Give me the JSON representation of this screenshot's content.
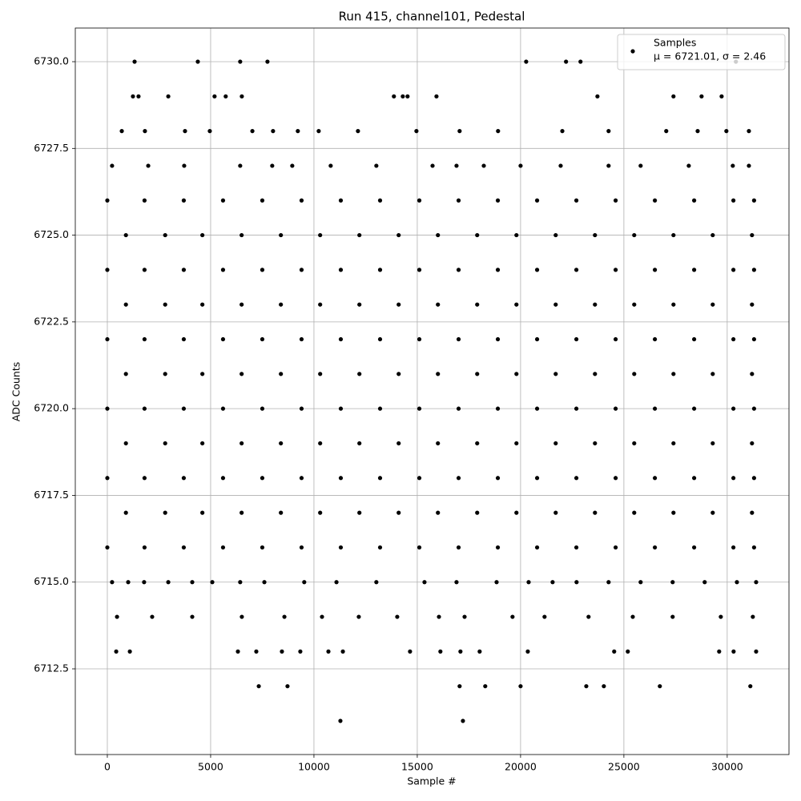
{
  "chart_data": {
    "type": "scatter",
    "title": "Run 415, channel101, Pedestal",
    "x_label": "Sample #",
    "y_label": "ADC Counts",
    "xlim": [
      -1550,
      32990
    ],
    "ylim": [
      6710.03,
      6730.97
    ],
    "xticks": [
      0,
      5000,
      10000,
      15000,
      20000,
      25000,
      30000
    ],
    "yticks": [
      {
        "value": 6712.5,
        "label": "6712.5"
      },
      {
        "value": 6715,
        "label": "6715.0"
      },
      {
        "value": 6717.5,
        "label": "6717.5"
      },
      {
        "value": 6720,
        "label": "6720.0"
      },
      {
        "value": 6722.5,
        "label": "6722.5"
      },
      {
        "value": 6725,
        "label": "6725.0"
      },
      {
        "value": 6727.5,
        "label": "6727.5"
      },
      {
        "value": 6730,
        "label": "6730.0"
      }
    ],
    "grid": true,
    "legend": "upper right",
    "legend_note": "μ = 6721.01, σ = 2.46",
    "series": [
      {
        "name": "Samples",
        "color": "#000000",
        "x": [
          0,
          1800,
          3700,
          5600,
          7500,
          9400,
          11300,
          13200,
          15100,
          17000,
          18900,
          20800,
          22700,
          24600,
          26500,
          28400,
          30300,
          31300,
          900,
          2800,
          4600,
          6500,
          8400,
          10300,
          12200,
          14100,
          16000,
          17900,
          19800,
          21700,
          23600,
          25500,
          27400,
          29300,
          31200,
          0,
          1800,
          3700,
          5600,
          7500,
          9400,
          11300,
          13200,
          15100,
          17000,
          18900,
          20800,
          22700,
          24600,
          26500,
          28400,
          30300,
          31300,
          900,
          2800,
          4600,
          6500,
          8400,
          10300,
          12200,
          14100,
          16000,
          17900,
          19800,
          21700,
          23600,
          25500,
          27400,
          29300,
          31200,
          0,
          1800,
          3700,
          5600,
          7500,
          9400,
          11300,
          13200,
          15100,
          17000,
          18900,
          20800,
          22700,
          24600,
          26500,
          28400,
          30300,
          31300,
          900,
          2800,
          4600,
          6500,
          8400,
          10300,
          12200,
          14100,
          16000,
          17900,
          19800,
          21700,
          23600,
          25500,
          27400,
          29300,
          31200,
          0,
          1800,
          3700,
          5600,
          7500,
          9400,
          11300,
          13200,
          15100,
          17000,
          18900,
          20800,
          22700,
          24600,
          26500,
          28400,
          30300,
          31300,
          900,
          2800,
          4600,
          6500,
          8400,
          10300,
          12200,
          14100,
          16000,
          17900,
          19800,
          21700,
          23600,
          25500,
          27400,
          29300,
          31200,
          0,
          1800,
          3700,
          5600,
          7500,
          9400,
          11300,
          13200,
          15100,
          17000,
          18900,
          20800,
          22700,
          24600,
          26500,
          28400,
          30300,
          31300,
          900,
          2800,
          4600,
          6500,
          8400,
          10300,
          12200,
          14100,
          16000,
          17900,
          19800,
          21700,
          23600,
          25500,
          27400,
          29300,
          31200,
          0,
          1800,
          3700,
          5600,
          7500,
          9400,
          11300,
          13200,
          15100,
          17000,
          18900,
          20800,
          22700,
          24600,
          26500,
          28400,
          30300,
          31300,
          1320,
          4380,
          6430,
          7750,
          20270,
          22200,
          22900,
          30420,
          1240,
          1510,
          2950,
          5190,
          5730,
          6510,
          13870,
          14300,
          14530,
          15930,
          23720,
          27400,
          28760,
          29730,
          700,
          1820,
          3760,
          4960,
          7020,
          8020,
          9220,
          10230,
          12130,
          14960,
          17050,
          18910,
          22020,
          24260,
          27050,
          28570,
          29960,
          31050,
          230,
          1980,
          3720,
          6430,
          7980,
          8950,
          10810,
          13020,
          15740,
          16900,
          18220,
          20000,
          21940,
          24260,
          25810,
          28140,
          30270,
          31050,
          230,
          1010,
          1780,
          2950,
          4110,
          5080,
          6430,
          7600,
          9530,
          11090,
          13020,
          15350,
          16900,
          18840,
          20390,
          21550,
          22710,
          24260,
          25810,
          27360,
          28910,
          30470,
          31400,
          470,
          2170,
          4110,
          6510,
          8570,
          10390,
          12170,
          14030,
          16050,
          17290,
          19610,
          21160,
          23290,
          25430,
          27360,
          29690,
          31240,
          430,
          1090,
          6320,
          7210,
          8450,
          9340,
          10700,
          11400,
          14650,
          16120,
          17090,
          18020,
          20350,
          24530,
          25190,
          29610,
          30310,
          31400,
          7330,
          8720,
          17050,
          18290,
          20000,
          23180,
          24030,
          26740,
          31120,
          11280,
          17210
        ],
        "values": [
          6716,
          6716,
          6716,
          6716,
          6716,
          6716,
          6716,
          6716,
          6716,
          6716,
          6716,
          6716,
          6716,
          6716,
          6716,
          6716,
          6716,
          6716,
          6717,
          6717,
          6717,
          6717,
          6717,
          6717,
          6717,
          6717,
          6717,
          6717,
          6717,
          6717,
          6717,
          6717,
          6717,
          6717,
          6717,
          6718,
          6718,
          6718,
          6718,
          6718,
          6718,
          6718,
          6718,
          6718,
          6718,
          6718,
          6718,
          6718,
          6718,
          6718,
          6718,
          6718,
          6718,
          6719,
          6719,
          6719,
          6719,
          6719,
          6719,
          6719,
          6719,
          6719,
          6719,
          6719,
          6719,
          6719,
          6719,
          6719,
          6719,
          6719,
          6720,
          6720,
          6720,
          6720,
          6720,
          6720,
          6720,
          6720,
          6720,
          6720,
          6720,
          6720,
          6720,
          6720,
          6720,
          6720,
          6720,
          6720,
          6721,
          6721,
          6721,
          6721,
          6721,
          6721,
          6721,
          6721,
          6721,
          6721,
          6721,
          6721,
          6721,
          6721,
          6721,
          6721,
          6721,
          6722,
          6722,
          6722,
          6722,
          6722,
          6722,
          6722,
          6722,
          6722,
          6722,
          6722,
          6722,
          6722,
          6722,
          6722,
          6722,
          6722,
          6722,
          6723,
          6723,
          6723,
          6723,
          6723,
          6723,
          6723,
          6723,
          6723,
          6723,
          6723,
          6723,
          6723,
          6723,
          6723,
          6723,
          6723,
          6724,
          6724,
          6724,
          6724,
          6724,
          6724,
          6724,
          6724,
          6724,
          6724,
          6724,
          6724,
          6724,
          6724,
          6724,
          6724,
          6724,
          6724,
          6725,
          6725,
          6725,
          6725,
          6725,
          6725,
          6725,
          6725,
          6725,
          6725,
          6725,
          6725,
          6725,
          6725,
          6725,
          6725,
          6725,
          6726,
          6726,
          6726,
          6726,
          6726,
          6726,
          6726,
          6726,
          6726,
          6726,
          6726,
          6726,
          6726,
          6726,
          6726,
          6726,
          6726,
          6726,
          6730,
          6730,
          6730,
          6730,
          6730,
          6730,
          6730,
          6730,
          6729,
          6729,
          6729,
          6729,
          6729,
          6729,
          6729,
          6729,
          6729,
          6729,
          6729,
          6729,
          6729,
          6729,
          6728,
          6728,
          6728,
          6728,
          6728,
          6728,
          6728,
          6728,
          6728,
          6728,
          6728,
          6728,
          6728,
          6728,
          6728,
          6728,
          6728,
          6728,
          6727,
          6727,
          6727,
          6727,
          6727,
          6727,
          6727,
          6727,
          6727,
          6727,
          6727,
          6727,
          6727,
          6727,
          6727,
          6727,
          6727,
          6727,
          6715,
          6715,
          6715,
          6715,
          6715,
          6715,
          6715,
          6715,
          6715,
          6715,
          6715,
          6715,
          6715,
          6715,
          6715,
          6715,
          6715,
          6715,
          6715,
          6715,
          6715,
          6715,
          6715,
          6714,
          6714,
          6714,
          6714,
          6714,
          6714,
          6714,
          6714,
          6714,
          6714,
          6714,
          6714,
          6714,
          6714,
          6714,
          6714,
          6714,
          6713,
          6713,
          6713,
          6713,
          6713,
          6713,
          6713,
          6713,
          6713,
          6713,
          6713,
          6713,
          6713,
          6713,
          6713,
          6713,
          6713,
          6713,
          6712,
          6712,
          6712,
          6712,
          6712,
          6712,
          6712,
          6712,
          6712,
          6711,
          6711
        ]
      }
    ]
  }
}
